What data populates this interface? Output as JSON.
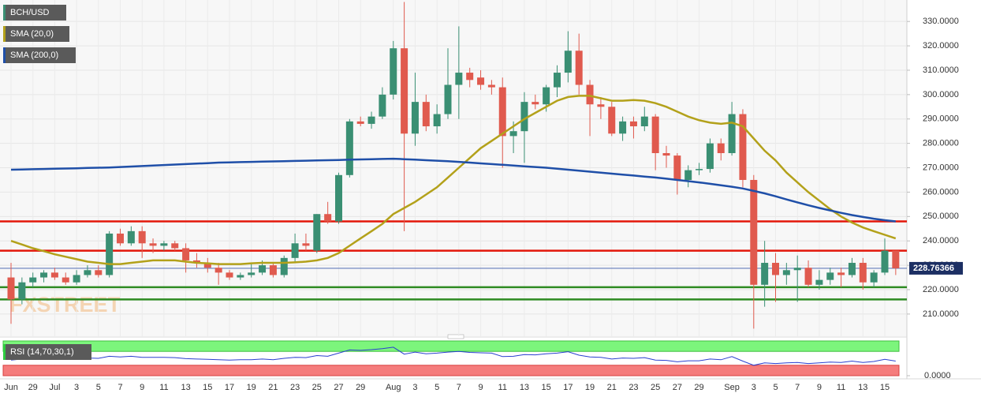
{
  "chart_data": {
    "type": "candlestick",
    "title": "BCH/USD",
    "watermark": "FXSTREET",
    "categories": [
      "Jun",
      null,
      "29",
      null,
      "Jul",
      null,
      "3",
      null,
      "5",
      null,
      "7",
      null,
      "9",
      null,
      "11",
      null,
      "13",
      null,
      "15",
      null,
      "17",
      null,
      "19",
      null,
      "21",
      null,
      "23",
      null,
      "25",
      null,
      "27",
      null,
      "29",
      null,
      null,
      "Aug",
      null,
      "3",
      null,
      "5",
      null,
      "7",
      null,
      "9",
      null,
      "11",
      null,
      "13",
      null,
      "15",
      null,
      "17",
      null,
      "19",
      null,
      "21",
      null,
      "23",
      null,
      "25",
      null,
      "27",
      null,
      "29",
      null,
      null,
      "Sep",
      null,
      "3",
      null,
      "5",
      null,
      "7",
      null,
      "9",
      null,
      "11",
      null,
      "13",
      null,
      "15",
      null
    ],
    "candles": {
      "name": "BCH/USD",
      "color": "#3a8f73",
      "up_color": "#3a8f73",
      "down_color": "#e05a4e",
      "open": [
        225,
        216,
        223,
        225,
        227,
        225,
        223,
        226,
        228,
        226,
        243,
        239,
        244,
        239,
        238,
        239,
        237,
        232,
        231,
        229,
        227,
        225,
        226,
        227,
        230,
        226,
        233,
        239,
        236,
        251,
        248,
        267,
        289,
        288,
        291,
        300,
        319,
        284,
        297,
        287,
        292,
        304,
        309,
        307,
        304,
        303,
        283,
        285,
        297,
        296,
        303,
        309,
        318,
        304,
        296,
        295,
        284,
        289,
        287,
        291,
        276,
        275,
        265,
        269,
        269.5,
        280,
        276,
        292,
        265,
        222,
        231,
        226,
        228,
        229,
        222,
        224,
        227,
        226,
        231,
        223,
        227,
        236
      ],
      "high": [
        231,
        225,
        227,
        228,
        229,
        227,
        228,
        230,
        230,
        244,
        245,
        246,
        246,
        241,
        240,
        240,
        239,
        235,
        233,
        231,
        228,
        227,
        231,
        232,
        231,
        234,
        243,
        243,
        251,
        256,
        268,
        290,
        291,
        293,
        303,
        322,
        338,
        309,
        300,
        296,
        319,
        328,
        311,
        310,
        306,
        307,
        289,
        301,
        300,
        304,
        312,
        326,
        325,
        306,
        299,
        297,
        291,
        291,
        295,
        292,
        279,
        276,
        271,
        272,
        282,
        282,
        297,
        294,
        267,
        240,
        235,
        231,
        234,
        232,
        228,
        229,
        229,
        233,
        233,
        228,
        241,
        236
      ],
      "low": [
        206,
        214,
        221,
        223,
        224,
        222,
        222,
        225,
        225,
        225,
        238,
        238,
        233,
        235,
        236,
        236,
        227,
        229,
        227,
        222,
        224,
        224,
        225,
        226,
        225,
        225,
        231,
        236,
        235,
        247,
        247,
        266,
        287,
        286,
        290,
        298,
        244,
        279,
        285,
        284,
        290,
        290,
        303,
        302,
        300,
        270,
        276,
        272,
        294,
        293,
        299,
        305,
        300,
        283,
        290,
        283,
        281,
        282,
        285,
        269,
        270,
        259,
        262,
        267,
        268,
        273,
        275,
        262,
        204,
        213,
        215,
        222,
        215,
        221,
        220,
        222,
        221,
        225,
        220,
        221,
        226,
        226
      ],
      "close": [
        216,
        223,
        225,
        227,
        225,
        223,
        226,
        228,
        226,
        243,
        239,
        244,
        239,
        238,
        239,
        237,
        232,
        231,
        229,
        227,
        225,
        226,
        227,
        230,
        226,
        233,
        239,
        238,
        251,
        248,
        267,
        289,
        288,
        291,
        300,
        319,
        284,
        297,
        287,
        292,
        304,
        309,
        306,
        304,
        303,
        283,
        285,
        297,
        296,
        303,
        309,
        318,
        304,
        296,
        295,
        284,
        289,
        287,
        291,
        276,
        275,
        265,
        269,
        269.5,
        280,
        276,
        292,
        265,
        222,
        231,
        226,
        228,
        229,
        222,
        224,
        227,
        226,
        231,
        223,
        227,
        236,
        228.76366
      ]
    },
    "lines": [
      {
        "name": "SMA (20,0)",
        "color": "#b3a11a",
        "values": [
          240,
          238.5,
          237,
          235.8,
          234.5,
          233.5,
          232.5,
          231.5,
          231,
          230.5,
          230.5,
          231,
          231.5,
          232,
          232,
          232,
          231.5,
          231,
          230.8,
          230.5,
          230.5,
          230.5,
          230.8,
          231,
          231,
          231,
          231.2,
          231.5,
          232,
          233,
          235,
          238,
          241,
          244,
          247,
          251,
          253.5,
          256,
          259,
          262,
          266,
          270,
          274,
          278,
          281,
          284,
          287,
          290,
          292.5,
          295,
          297.5,
          299,
          299.5,
          299.5,
          298.5,
          297.5,
          297.5,
          297.8,
          297.5,
          296.5,
          295,
          293,
          291,
          289.5,
          288.5,
          288,
          288.5,
          287,
          282,
          277,
          273,
          268,
          264,
          260,
          256.5,
          253,
          250,
          247.5,
          245.5,
          244,
          242.5,
          241
        ]
      },
      {
        "name": "SMA (200,0)",
        "color": "#1f4fa8",
        "values": [
          269.2,
          269.3,
          269.4,
          269.5,
          269.6,
          269.7,
          269.8,
          269.9,
          270,
          270.1,
          270.3,
          270.5,
          270.7,
          270.9,
          271.1,
          271.3,
          271.5,
          271.7,
          271.9,
          272.1,
          272.2,
          272.3,
          272.4,
          272.5,
          272.6,
          272.7,
          272.8,
          272.9,
          273,
          273.1,
          273.2,
          273.3,
          273.4,
          273.5,
          273.6,
          273.7,
          273.5,
          273.3,
          273.1,
          272.9,
          272.7,
          272.4,
          272.1,
          271.8,
          271.5,
          271.2,
          270.9,
          270.6,
          270.3,
          270,
          269.6,
          269.2,
          268.8,
          268.4,
          268,
          267.6,
          267.2,
          266.8,
          266.4,
          266,
          265.5,
          265,
          264.5,
          264,
          263.4,
          262.8,
          262.2,
          261.5,
          260.5,
          259.5,
          258.3,
          257,
          255.8,
          254.6,
          253.5,
          252.5,
          251.5,
          250.6,
          249.8,
          249.1,
          248.5,
          248
        ]
      }
    ],
    "levels": [
      {
        "value": 248,
        "color": "#e3170a"
      },
      {
        "value": 236,
        "color": "#e3170a"
      },
      {
        "value": 221,
        "color": "#2e8b22"
      },
      {
        "value": 216,
        "color": "#2e8b22"
      }
    ],
    "last_price": {
      "value": 228.76366,
      "label": "228.76366",
      "color": "#1c2f63"
    },
    "ylim": [
      200.9,
      338.8
    ],
    "yticks": [
      {
        "value": 210,
        "label": "210.0000"
      },
      {
        "value": 220,
        "label": "220.0000"
      },
      {
        "value": 230,
        "label": "230.0000"
      },
      {
        "value": 240,
        "label": "240.0000"
      },
      {
        "value": 250,
        "label": "250.0000"
      },
      {
        "value": 260,
        "label": "260.0000"
      },
      {
        "value": 270,
        "label": "270.0000"
      },
      {
        "value": 280,
        "label": "280.0000"
      },
      {
        "value": 290,
        "label": "290.0000"
      },
      {
        "value": 300,
        "label": "300.0000"
      },
      {
        "value": 310,
        "label": "310.0000"
      },
      {
        "value": 320,
        "label": "320.0000"
      },
      {
        "value": 330,
        "label": "330.0000"
      }
    ],
    "grid": true,
    "rsi": {
      "name": "RSI (14,70,30,1)",
      "color": "#2a3fd0",
      "overbought": 70,
      "oversold": 30,
      "values": [
        45,
        48,
        50,
        51,
        50,
        49,
        50,
        51,
        50,
        56,
        54,
        56,
        53,
        53,
        53,
        52,
        49,
        48,
        47,
        46,
        45,
        46,
        46,
        48,
        46,
        50,
        53,
        52,
        58,
        56,
        65,
        74,
        73,
        75,
        78,
        82,
        62,
        68,
        63,
        65,
        68,
        70,
        67,
        66,
        65,
        55,
        56,
        61,
        60,
        63,
        65,
        69,
        59,
        54,
        53,
        48,
        51,
        50,
        52,
        45,
        44,
        40,
        43,
        43,
        48,
        46,
        55,
        42,
        30,
        37,
        35,
        37,
        38,
        35,
        37,
        39,
        38,
        42,
        38,
        41,
        47,
        42
      ],
      "ylim": [
        0,
        100
      ],
      "yticks": [
        {
          "value": 0,
          "label": "0.0000"
        }
      ]
    }
  }
}
